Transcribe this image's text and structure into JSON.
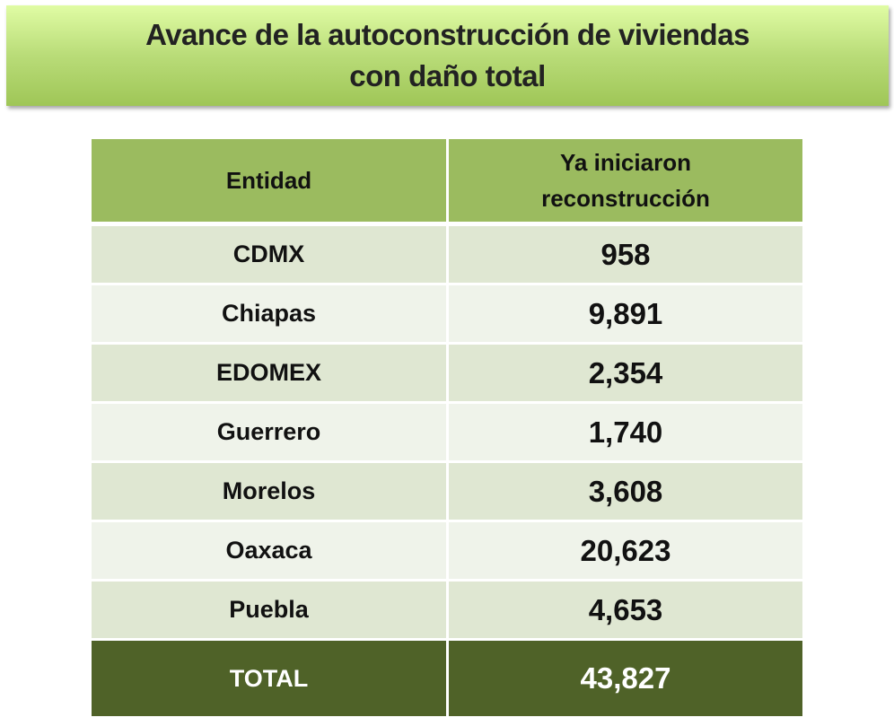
{
  "title": {
    "line1": "Avance de la autoconstrucción de viviendas",
    "line2": "con daño total"
  },
  "table": {
    "headers": [
      "Entidad",
      "Ya iniciaron",
      "reconstrucción"
    ],
    "rows": [
      {
        "entidad": "CDMX",
        "valor": "958"
      },
      {
        "entidad": "Chiapas",
        "valor": "9,891"
      },
      {
        "entidad": "EDOMEX",
        "valor": "2,354"
      },
      {
        "entidad": "Guerrero",
        "valor": "1,740"
      },
      {
        "entidad": "Morelos",
        "valor": "3,608"
      },
      {
        "entidad": "Oaxaca",
        "valor": "20,623"
      },
      {
        "entidad": "Puebla",
        "valor": "4,653"
      }
    ],
    "total": {
      "label": "TOTAL",
      "valor": "43,827"
    }
  }
}
